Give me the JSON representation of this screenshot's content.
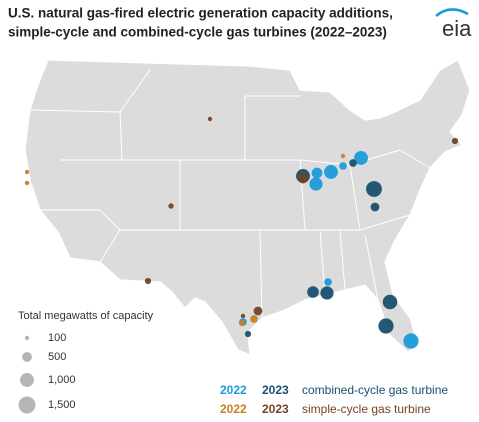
{
  "title": [
    "U.S. natural gas-fired electric generation capacity additions,",
    "simple-cycle and combined-cycle gas turbines (2022–2023)"
  ],
  "logo": "eia",
  "size_legend": {
    "title": "Total megawatts of capacity",
    "values": [
      100,
      500,
      {
        "value": 1000,
        "label": "1,000"
      },
      {
        "value": 1500,
        "label": "1,500"
      }
    ]
  },
  "types": [
    "combined-cycle gas turbine",
    "simple-cycle gas turbine"
  ],
  "series": [
    {
      "year": "2022",
      "color": "#1b9ad8",
      "values": [
        900,
        600,
        1000,
        300,
        1000,
        1200,
        300,
        300
      ]
    },
    {
      "year": "2023",
      "color": "#17506f",
      "values": [
        1000,
        1300,
        300,
        400,
        700,
        900,
        1100,
        1200,
        200
      ]
    },
    {
      "year": "2022",
      "color": "#c8801f",
      "values": [
        100,
        100,
        100,
        200,
        300
      ]
    },
    {
      "year": "2023",
      "color": "#704526",
      "values": [
        100,
        150,
        200,
        600,
        200,
        400,
        100
      ]
    }
  ]
}
